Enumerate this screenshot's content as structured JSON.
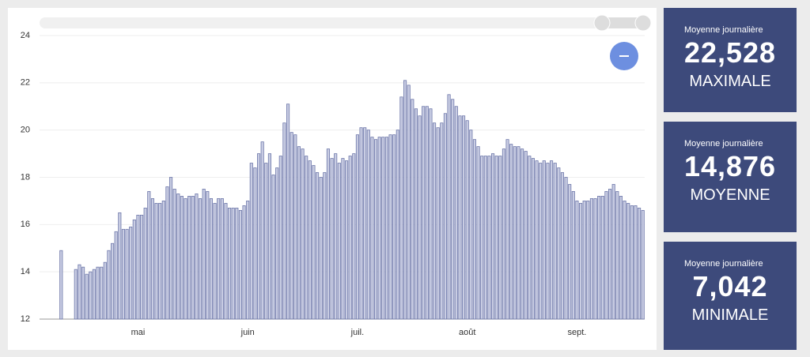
{
  "chart_data": {
    "type": "bar",
    "categories": [
      null,
      null,
      null,
      null,
      null,
      null,
      null,
      null,
      null,
      null,
      null,
      null,
      null,
      null,
      null,
      null,
      null,
      null,
      null,
      null,
      null,
      "mai",
      null,
      null,
      null,
      null,
      null,
      null,
      null,
      null,
      null,
      null,
      null,
      null,
      null,
      null,
      null,
      null,
      null,
      null,
      null,
      null,
      null,
      null,
      null,
      null,
      null,
      null,
      null,
      null,
      null,
      "juin",
      null,
      null,
      null,
      null,
      null,
      null,
      null,
      null,
      null,
      null,
      null,
      null,
      null,
      null,
      null,
      null,
      null,
      null,
      null,
      null,
      null,
      null,
      null,
      null,
      null,
      null,
      null,
      null,
      null,
      "juil.",
      null,
      null,
      null,
      null,
      null,
      null,
      null,
      null,
      null,
      null,
      null,
      null,
      null,
      null,
      null,
      null,
      null,
      null,
      null,
      null,
      null,
      null,
      null,
      null,
      null,
      null,
      null,
      null,
      null,
      "août",
      null,
      null,
      null,
      null,
      null,
      null,
      null,
      null,
      null,
      null,
      null,
      null,
      null,
      null,
      null,
      null,
      null,
      null,
      null,
      null,
      null,
      null,
      null,
      null,
      null,
      null,
      null,
      null,
      null,
      "sept.",
      null,
      null,
      null,
      null,
      null,
      null,
      null,
      null,
      null,
      null,
      null,
      null,
      null,
      null,
      null,
      null,
      null,
      null
    ],
    "values": [
      14.9,
      null,
      null,
      null,
      14.1,
      14.3,
      14.2,
      13.9,
      14.0,
      14.1,
      14.2,
      14.2,
      14.4,
      14.9,
      15.2,
      15.7,
      16.5,
      15.8,
      15.8,
      15.9,
      16.2,
      16.4,
      16.4,
      16.7,
      17.4,
      17.1,
      16.9,
      16.9,
      17.0,
      17.6,
      18.0,
      17.5,
      17.3,
      17.2,
      17.1,
      17.2,
      17.2,
      17.3,
      17.1,
      17.5,
      17.4,
      17.1,
      16.9,
      17.1,
      17.1,
      16.9,
      16.7,
      16.7,
      16.7,
      16.6,
      16.8,
      17.0,
      18.6,
      18.4,
      19.0,
      19.5,
      18.6,
      19.0,
      18.1,
      18.4,
      18.9,
      20.3,
      21.1,
      19.9,
      19.8,
      19.3,
      19.2,
      18.9,
      18.7,
      18.5,
      18.2,
      18.0,
      18.2,
      19.2,
      18.8,
      19.0,
      18.6,
      18.8,
      18.7,
      18.9,
      19.0,
      19.8,
      20.1,
      20.1,
      20.0,
      19.7,
      19.6,
      19.7,
      19.7,
      19.7,
      19.8,
      19.8,
      20.0,
      21.4,
      22.1,
      21.9,
      21.3,
      20.9,
      20.6,
      21.0,
      21.0,
      20.9,
      20.3,
      20.1,
      20.3,
      20.7,
      21.5,
      21.3,
      21.0,
      20.6,
      20.6,
      20.4,
      20.0,
      19.6,
      19.3,
      18.9,
      18.9,
      18.9,
      19.0,
      18.9,
      18.9,
      19.2,
      19.6,
      19.4,
      19.3,
      19.3,
      19.2,
      19.1,
      18.9,
      18.8,
      18.7,
      18.6,
      18.7,
      18.6,
      18.7,
      18.6,
      18.4,
      18.2,
      18.0,
      17.7,
      17.4,
      17.0,
      16.9,
      17.0,
      17.0,
      17.1,
      17.1,
      17.2,
      17.2,
      17.4,
      17.5,
      17.7,
      17.4,
      17.2,
      17.0,
      16.9,
      16.8,
      16.8,
      16.7,
      16.6
    ],
    "color": "#c9cde3",
    "stroke": "#6e78aa",
    "ylim": [
      12,
      24
    ],
    "yticks": [
      12,
      14,
      16,
      18,
      20,
      22,
      24
    ],
    "grid": true
  },
  "cards": [
    {
      "label": "Moyenne journalière",
      "value": "22,528",
      "caption": "MAXIMALE"
    },
    {
      "label": "Moyenne journalière",
      "value": "14,876",
      "caption": "MOYENNE"
    },
    {
      "label": "Moyenne journalière",
      "value": "7,042",
      "caption": "MINIMALE"
    }
  ]
}
